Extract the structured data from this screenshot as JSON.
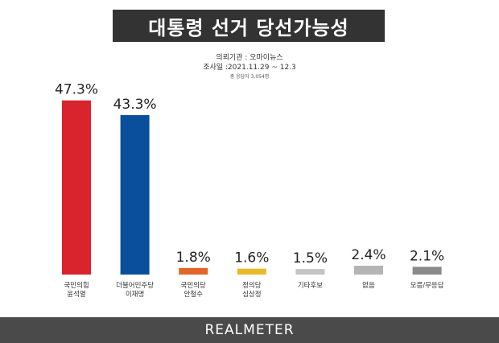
{
  "header": {
    "title": "대통령 선거 당선가능성"
  },
  "meta": {
    "agency": "의뢰기관 : 오마이뉴스",
    "period": "조사일 :2021.11.29 ~ 12.3",
    "sample": "총 응답자 3,054명"
  },
  "footer": {
    "brand": "REALMETER"
  },
  "chart_data": {
    "type": "bar",
    "title": "대통령 선거 당선가능성",
    "categories": [
      [
        "국민의힘",
        "윤석열"
      ],
      [
        "더불어민주당",
        "이재명"
      ],
      [
        "국민의당",
        "안철수"
      ],
      [
        "정의당",
        "심상정"
      ],
      [
        "기타후보"
      ],
      [
        "없음"
      ],
      [
        "모름/무응답"
      ]
    ],
    "values": [
      47.3,
      43.3,
      1.8,
      1.6,
      1.5,
      2.4,
      2.1
    ],
    "value_labels": [
      "47.3%",
      "43.3%",
      "1.8%",
      "1.6%",
      "1.5%",
      "2.4%",
      "2.1%"
    ],
    "colors": [
      "#d9232d",
      "#0a4f9c",
      "#e0662a",
      "#e8b92a",
      "#c4c4c4",
      "#b4b4b4",
      "#8a8a8a"
    ],
    "ylim": [
      0,
      50
    ],
    "grid": false,
    "legend": "none"
  }
}
